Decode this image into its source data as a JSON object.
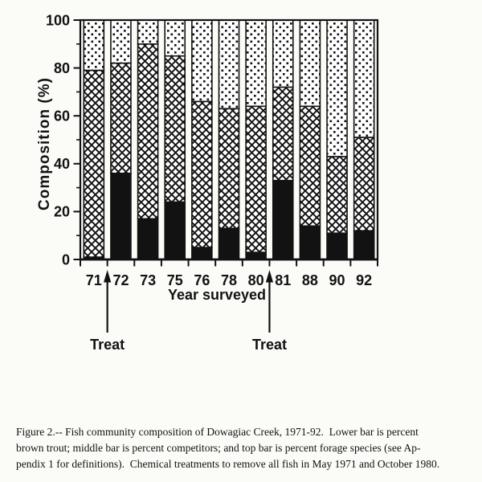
{
  "chart_data": {
    "type": "bar",
    "stacked": true,
    "xlabel": "Year surveyed",
    "ylabel": "Composition  (%)",
    "ylim": [
      0,
      100
    ],
    "y_major_ticks": [
      0,
      20,
      40,
      60,
      80,
      100
    ],
    "y_minor_step": 10,
    "grid": false,
    "legend": "none (series identified in caption)",
    "categories": [
      "71",
      "72",
      "73",
      "75",
      "76",
      "78",
      "80",
      "81",
      "88",
      "90",
      "92"
    ],
    "series": [
      {
        "name": "brown trout",
        "pattern": "solid-black",
        "values": [
          1,
          36,
          17,
          24,
          5,
          13,
          3,
          33,
          14,
          11,
          12
        ]
      },
      {
        "name": "competitors",
        "pattern": "crosshatch",
        "values": [
          78,
          46,
          73,
          61,
          61,
          50,
          61,
          39,
          50,
          32,
          39
        ]
      },
      {
        "name": "forage species",
        "pattern": "dots",
        "values": [
          21,
          18,
          10,
          15,
          34,
          37,
          36,
          28,
          36,
          57,
          49
        ]
      }
    ],
    "annotations": [
      {
        "label": "Treat",
        "between": [
          "71",
          "72"
        ]
      },
      {
        "label": "Treat",
        "between": [
          "80",
          "81"
        ]
      }
    ]
  },
  "colors": {
    "ink": "#121212",
    "paper": "#fbfbf8",
    "bar_background": "#ffffff"
  },
  "caption": {
    "lines": [
      "Figure 2.-- Fish community composition of Dowagiac Creek, 1971-92.  Lower bar is percent",
      "brown trout; middle bar is percent competitors; and top bar is percent forage species (see Ap-",
      "pendix 1 for definitions).  Chemical treatments to remove all fish in May 1971 and October 1980."
    ]
  }
}
